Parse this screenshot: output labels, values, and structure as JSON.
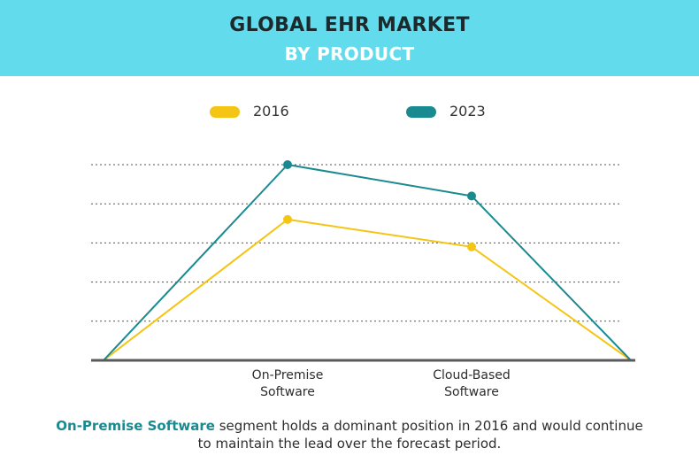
{
  "header": {
    "title_line1": "GLOBAL EHR MARKET",
    "title_line2": "BY PRODUCT",
    "background_color": "#62dced"
  },
  "legend": [
    {
      "label": "2016",
      "color": "#f4c514"
    },
    {
      "label": "2023",
      "color": "#1a8a91"
    }
  ],
  "chart_data": {
    "type": "line",
    "title": "",
    "xlabel": "",
    "ylabel": "",
    "categories": [
      "",
      "On-Premise Software",
      "Cloud-Based Software",
      ""
    ],
    "category_lines": [
      [],
      [
        "On-Premise",
        "Software"
      ],
      [
        "Cloud-Based",
        "Software"
      ],
      []
    ],
    "ylim": [
      0,
      5
    ],
    "yticks": [
      0,
      1,
      2,
      3,
      4,
      5
    ],
    "y_tick_labels_shown": false,
    "gridlines": "dotted horizontal",
    "legend_position": "top",
    "series": [
      {
        "name": "2016",
        "values": [
          0,
          3.6,
          2.9,
          0
        ],
        "color": "#f4c514"
      },
      {
        "name": "2023",
        "values": [
          0,
          5.0,
          4.2,
          0
        ],
        "color": "#1a8a91"
      }
    ]
  },
  "footer": {
    "highlight": "On-Premise Software",
    "rest_line1": " segment holds a dominant position in 2016 and would continue",
    "line2": "to maintain the lead over the forecast period.",
    "highlight_color": "#1a8a91"
  }
}
